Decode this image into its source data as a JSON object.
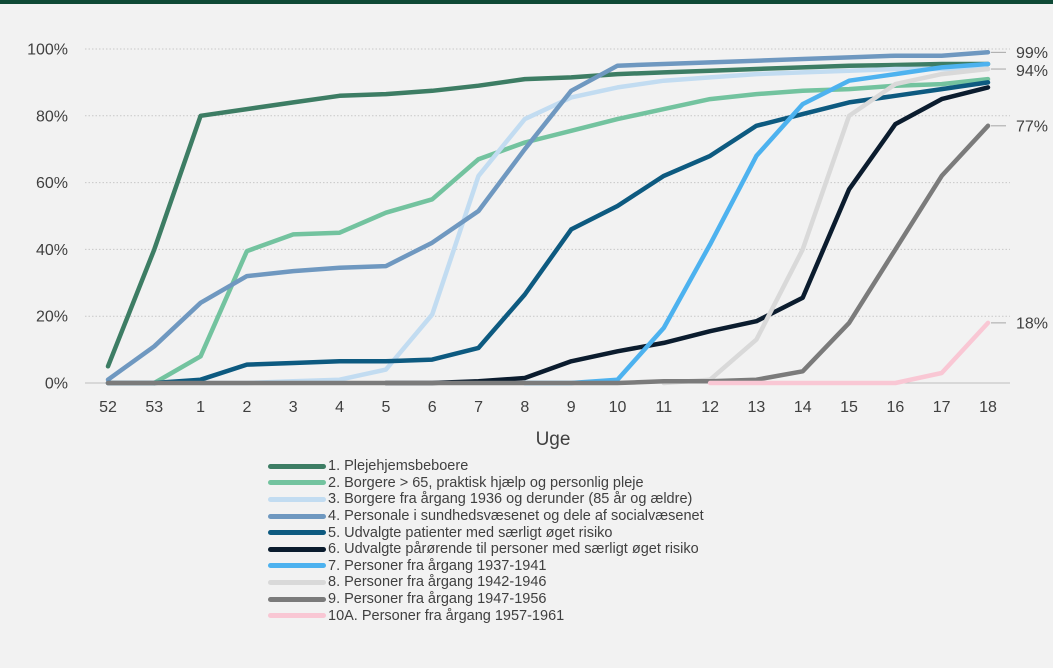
{
  "chart_data": {
    "type": "line",
    "xlabel": "Uge",
    "ylabel": "",
    "categories": [
      "52",
      "53",
      "1",
      "2",
      "3",
      "4",
      "5",
      "6",
      "7",
      "8",
      "9",
      "10",
      "11",
      "12",
      "13",
      "14",
      "15",
      "16",
      "17",
      "18"
    ],
    "ylim": [
      0,
      1
    ],
    "yticks": [
      "0%",
      "20%",
      "40%",
      "60%",
      "80%",
      "100%"
    ],
    "grid": true,
    "legend_position": "bottom",
    "end_labels": [
      {
        "text": "99%",
        "value": 0.99
      },
      {
        "text": "94%",
        "value": 0.94
      },
      {
        "text": "77%",
        "value": 0.77
      },
      {
        "text": "18%",
        "value": 0.18
      }
    ],
    "series": [
      {
        "name": "1. Plejehjemsbeboere",
        "color": "#3d7d64",
        "values": [
          0.05,
          0.4,
          0.8,
          0.82,
          0.84,
          0.86,
          0.865,
          0.875,
          0.89,
          0.91,
          0.915,
          0.925,
          0.93,
          0.935,
          0.94,
          0.945,
          0.95,
          0.952,
          0.955,
          0.955
        ]
      },
      {
        "name": "2. Borgere > 65, praktisk hjælp og personlig pleje",
        "color": "#73c39f",
        "values": [
          null,
          0.0,
          0.08,
          0.395,
          0.445,
          0.45,
          0.51,
          0.55,
          0.67,
          0.72,
          0.755,
          0.79,
          0.82,
          0.85,
          0.865,
          0.875,
          0.88,
          0.89,
          0.895,
          0.91
        ]
      },
      {
        "name": "3. Borgere fra årgang 1936 og derunder (85 år og ældre)",
        "color": "#c2dcf1",
        "values": [
          null,
          null,
          0.0,
          0.0,
          0.005,
          0.01,
          0.04,
          0.205,
          0.62,
          0.79,
          0.855,
          0.885,
          0.905,
          0.915,
          0.925,
          0.93,
          0.935,
          0.94,
          0.94,
          0.94
        ]
      },
      {
        "name": "4. Personale i sundhedsvæsenet og dele af socialvæsenet",
        "color": "#6f98c0",
        "values": [
          0.01,
          0.11,
          0.24,
          0.32,
          0.335,
          0.345,
          0.35,
          0.42,
          0.515,
          0.7,
          0.875,
          0.95,
          0.955,
          0.96,
          0.965,
          0.97,
          0.975,
          0.98,
          0.98,
          0.99
        ]
      },
      {
        "name": "5. Udvalgte patienter med særligt øget risiko",
        "color": "#0d5a80",
        "values": [
          0.0,
          0.0,
          0.01,
          0.055,
          0.06,
          0.065,
          0.065,
          0.07,
          0.105,
          0.265,
          0.46,
          0.53,
          0.62,
          0.68,
          0.77,
          0.805,
          0.84,
          0.86,
          0.88,
          0.9
        ]
      },
      {
        "name": "6. Udvalgte pårørende til personer med særligt øget risiko",
        "color": "#0b1c2e",
        "values": [
          null,
          null,
          null,
          null,
          null,
          null,
          0.0,
          0.0,
          0.005,
          0.015,
          0.065,
          0.095,
          0.12,
          0.155,
          0.185,
          0.255,
          0.58,
          0.775,
          0.85,
          0.885
        ]
      },
      {
        "name": "7. Personer fra årgang 1937-1941",
        "color": "#4db2ef",
        "values": [
          null,
          null,
          null,
          null,
          null,
          null,
          null,
          null,
          null,
          0.0,
          0.0,
          0.01,
          0.165,
          0.415,
          0.68,
          0.835,
          0.905,
          0.925,
          0.945,
          0.955
        ]
      },
      {
        "name": "8. Personer fra årgang 1942-1946",
        "color": "#d9d9d9",
        "values": [
          null,
          null,
          null,
          null,
          null,
          null,
          null,
          null,
          null,
          null,
          null,
          null,
          0.0,
          0.01,
          0.13,
          0.4,
          0.8,
          0.895,
          0.925,
          0.94
        ]
      },
      {
        "name": "9. Personer fra årgang 1947-1956",
        "color": "#7b7b7b",
        "values": [
          0.0,
          0.0,
          0.0,
          0.0,
          0.0,
          0.0,
          0.0,
          0.0,
          0.0,
          0.0,
          0.0,
          0.0,
          0.005,
          0.005,
          0.01,
          0.035,
          0.18,
          0.4,
          0.62,
          0.77
        ]
      },
      {
        "name": "10A. Personer fra årgang 1957-1961",
        "color": "#f9c7d4",
        "values": [
          null,
          null,
          null,
          null,
          null,
          null,
          null,
          null,
          null,
          null,
          null,
          null,
          null,
          0.0,
          0.0,
          0.0,
          0.0,
          0.0,
          0.03,
          0.18
        ]
      }
    ]
  }
}
